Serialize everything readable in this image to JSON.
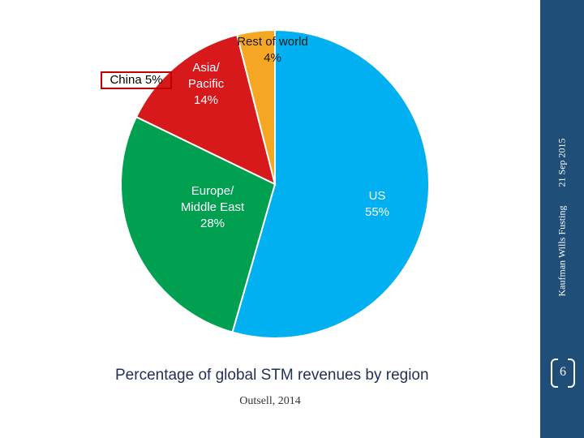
{
  "chart_data": {
    "type": "pie",
    "title": "Percentage of global STM revenues by region",
    "source": "Outsell, 2014",
    "slices": [
      {
        "label": "US",
        "value": 55,
        "value_label": "55%",
        "color": "#00b0f0"
      },
      {
        "label": "Europe/ Middle East",
        "value": 28,
        "value_label": "28%",
        "color": "#00a050"
      },
      {
        "label": "Asia/ Pacific",
        "value": 14,
        "value_label": "14%",
        "color": "#d7191c"
      },
      {
        "label": "Rest of world",
        "value": 4,
        "value_label": "4%",
        "color": "#f5a623"
      }
    ],
    "callout": {
      "label": "China 5%",
      "border_color": "#c00000"
    }
  },
  "sidebar": {
    "author": "Kaufman Wills Fusting",
    "date": "21 Sep 2015",
    "page_number": "6",
    "color": "#1f4e79"
  }
}
